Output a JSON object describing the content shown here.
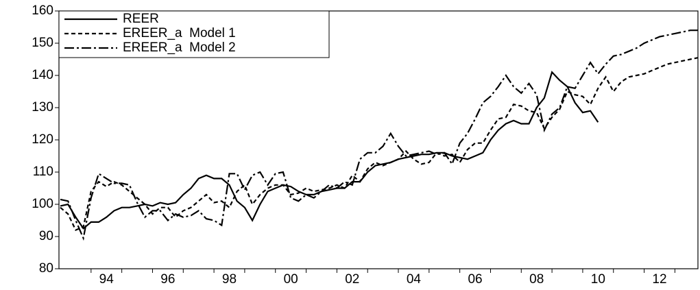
{
  "chart_data": {
    "type": "line",
    "x": [
      1993,
      1993.25,
      1993.5,
      1993.75,
      1994,
      1994.25,
      1994.5,
      1994.75,
      1995,
      1995.25,
      1995.5,
      1995.75,
      1996,
      1996.25,
      1996.5,
      1996.75,
      1997,
      1997.25,
      1997.5,
      1997.75,
      1998,
      1998.25,
      1998.5,
      1998.75,
      1999,
      1999.25,
      1999.5,
      1999.75,
      2000,
      2000.25,
      2000.5,
      2000.75,
      2001,
      2001.25,
      2001.5,
      2001.75,
      2002,
      2002.25,
      2002.5,
      2002.75,
      2003,
      2003.25,
      2003.5,
      2003.75,
      2004,
      2004.25,
      2004.5,
      2004.75,
      2005,
      2005.25,
      2005.5,
      2005.75,
      2006,
      2006.25,
      2006.5,
      2006.75,
      2007,
      2007.25,
      2007.5,
      2007.75,
      2008,
      2008.25,
      2008.5,
      2008.75,
      2009,
      2009.25,
      2009.5,
      2009.75,
      2010,
      2010.25,
      2010.5,
      2010.75,
      2011,
      2011.25,
      2011.5,
      2011.75,
      2012,
      2012.25,
      2012.5,
      2012.75,
      2013,
      2013.25,
      2013.5,
      2013.75
    ],
    "series": [
      {
        "name": "REER",
        "color": "#000000",
        "dash": "none",
        "values": [
          99.5,
          100,
          96,
          92.5,
          94.5,
          94.5,
          96,
          98,
          99,
          99,
          99.5,
          100,
          99.5,
          100.5,
          100,
          100.5,
          103,
          105,
          108,
          109,
          108,
          108,
          106,
          101,
          99,
          95,
          100,
          104,
          105,
          106,
          105.5,
          104,
          103,
          103,
          104,
          104.5,
          105,
          105,
          107,
          107,
          110,
          112,
          112.5,
          113,
          114,
          114.5,
          115,
          115.5,
          115.5,
          116,
          116,
          115,
          114.5,
          114,
          115,
          116,
          120,
          123,
          125,
          126,
          125,
          125,
          130,
          133,
          141,
          138.5,
          136.5,
          131.5,
          128.5,
          129,
          125.5,
          null,
          null,
          null,
          null,
          null,
          null,
          null,
          null,
          null,
          null,
          null,
          null,
          null
        ]
      },
      {
        "name": "EREER_a  Model 1",
        "color": "#000000",
        "dash": "6,4",
        "values": [
          99,
          97,
          92,
          93,
          104,
          107,
          105.5,
          107,
          106,
          104,
          102,
          100,
          97,
          99,
          99,
          96,
          98,
          99,
          101,
          103,
          100.5,
          101,
          99,
          104,
          106,
          100,
          103,
          105,
          106,
          106,
          103,
          103.5,
          105,
          104,
          104.5,
          105,
          106,
          105,
          109,
          107,
          111,
          113,
          112,
          113,
          114,
          116.5,
          114,
          112.5,
          113,
          116,
          115,
          115.5,
          113,
          117,
          119,
          119,
          123,
          126.5,
          127,
          131,
          130.5,
          129,
          128.5,
          123.5,
          127,
          129.5,
          135,
          134,
          133.5,
          131,
          136,
          139.5,
          135,
          138,
          139.5,
          140,
          140.5,
          141.5,
          142.5,
          143.5,
          144,
          144.5,
          145,
          145.5
        ]
      },
      {
        "name": "EREER_a  Model 2",
        "color": "#000000",
        "dash": "14,4,3,4",
        "values": [
          101.5,
          101,
          95,
          89.5,
          102,
          109.5,
          108,
          106.5,
          106.5,
          106,
          100.5,
          96,
          98,
          98,
          95,
          97,
          96,
          96.5,
          98,
          95.5,
          95,
          93.5,
          109.5,
          109.5,
          104.5,
          109,
          110,
          106,
          109.5,
          110,
          102,
          101,
          103,
          102,
          104,
          106,
          105,
          107,
          106,
          114,
          116,
          116,
          118,
          122,
          118,
          115,
          115.5,
          116,
          116.5,
          115.5,
          116,
          112.5,
          119,
          122,
          126.5,
          131.5,
          133.5,
          136.5,
          140,
          136.5,
          134.5,
          137.5,
          134,
          123,
          128,
          130,
          136.5,
          136,
          140,
          144,
          140.5,
          143.5,
          146,
          146.5,
          147.5,
          148.5,
          150,
          151,
          152,
          152.5,
          153,
          153.5,
          154,
          154
        ]
      }
    ],
    "xlim": [
      1993,
      2013.75
    ],
    "xticks": [
      {
        "value": 1994.5,
        "label": "94"
      },
      {
        "value": 1996.5,
        "label": "96"
      },
      {
        "value": 1998.5,
        "label": "98"
      },
      {
        "value": 2000.5,
        "label": "00"
      },
      {
        "value": 2002.5,
        "label": "02"
      },
      {
        "value": 2004.5,
        "label": "04"
      },
      {
        "value": 2006.5,
        "label": "06"
      },
      {
        "value": 2008.5,
        "label": "08"
      },
      {
        "value": 2010.5,
        "label": "10"
      },
      {
        "value": 2012.5,
        "label": "12"
      }
    ],
    "xminorticks": [
      1994,
      1995,
      1996,
      1997,
      1998,
      1999,
      2000,
      2001,
      2002,
      2003,
      2004,
      2005,
      2006,
      2007,
      2008,
      2009,
      2010,
      2011,
      2012,
      2013
    ],
    "ylim": [
      80,
      160
    ],
    "yticks": [
      80,
      90,
      100,
      110,
      120,
      130,
      140,
      150,
      160
    ],
    "legend": "upper-left"
  }
}
